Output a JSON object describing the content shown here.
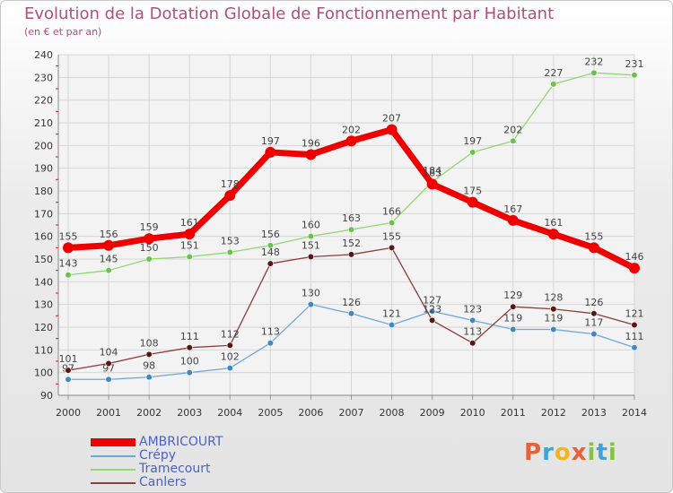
{
  "header": {
    "title": "Evolution de la Dotation Globale de Fonctionnement par Habitant",
    "subtitle": "(en € et par an)"
  },
  "brand": {
    "logo_text": "Proxiti",
    "letters": [
      "P",
      "r",
      "o",
      "x",
      "i",
      "t",
      "i"
    ]
  },
  "chart_data": {
    "type": "line",
    "title": "Evolution de la Dotation Globale de Fonctionnement par Habitant",
    "subtitle": "(en € et par an)",
    "xlabel": "",
    "ylabel": "",
    "ylim": [
      90,
      240
    ],
    "yticks": [
      90,
      100,
      110,
      120,
      130,
      140,
      150,
      160,
      170,
      180,
      190,
      200,
      210,
      220,
      230,
      240
    ],
    "grid": true,
    "legend_position": "bottom-left",
    "categories": [
      "2000",
      "2001",
      "2002",
      "2003",
      "2004",
      "2005",
      "2006",
      "2007",
      "2008",
      "2009",
      "2010",
      "2011",
      "2012",
      "2013",
      "2014"
    ],
    "series": [
      {
        "name": "Tramecourt",
        "color": "#90d870",
        "dot": "#6ac24a",
        "values": [
          143,
          145,
          150,
          151,
          153,
          156,
          160,
          163,
          166,
          184,
          197,
          202,
          227,
          232,
          231
        ]
      },
      {
        "name": "Crépy",
        "color": "#6fa8d8",
        "dot": "#3f88c8",
        "values": [
          97,
          97,
          98,
          100,
          102,
          113,
          130,
          126,
          121,
          127,
          123,
          119,
          119,
          117,
          111
        ]
      },
      {
        "name": "Canlers",
        "color": "#8a3d3d",
        "dot": "#5a1515",
        "values": [
          101,
          104,
          108,
          111,
          112,
          148,
          151,
          152,
          155,
          123,
          113,
          129,
          128,
          126,
          121
        ]
      },
      {
        "name": "AMBRICOURT",
        "color": "#ee0000",
        "dot": "#ee0000",
        "values": [
          155,
          156,
          159,
          161,
          178,
          197,
          196,
          202,
          207,
          183,
          175,
          167,
          161,
          155,
          146
        ]
      }
    ],
    "legend_order": [
      "AMBRICOURT",
      "Crépy",
      "Tramecourt",
      "Canlers"
    ]
  }
}
